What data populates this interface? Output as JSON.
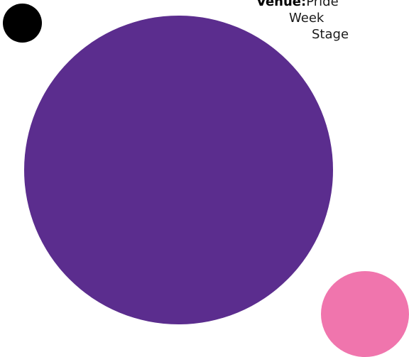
{
  "venue": {
    "label": "Venue:",
    "lines": [
      "Pride",
      "Week",
      "Stage"
    ]
  },
  "colors": {
    "black_dot": "#000000",
    "purple_circle": "#5b2d8e",
    "pink_circle": "#f075ad",
    "background": "#ffffff"
  }
}
